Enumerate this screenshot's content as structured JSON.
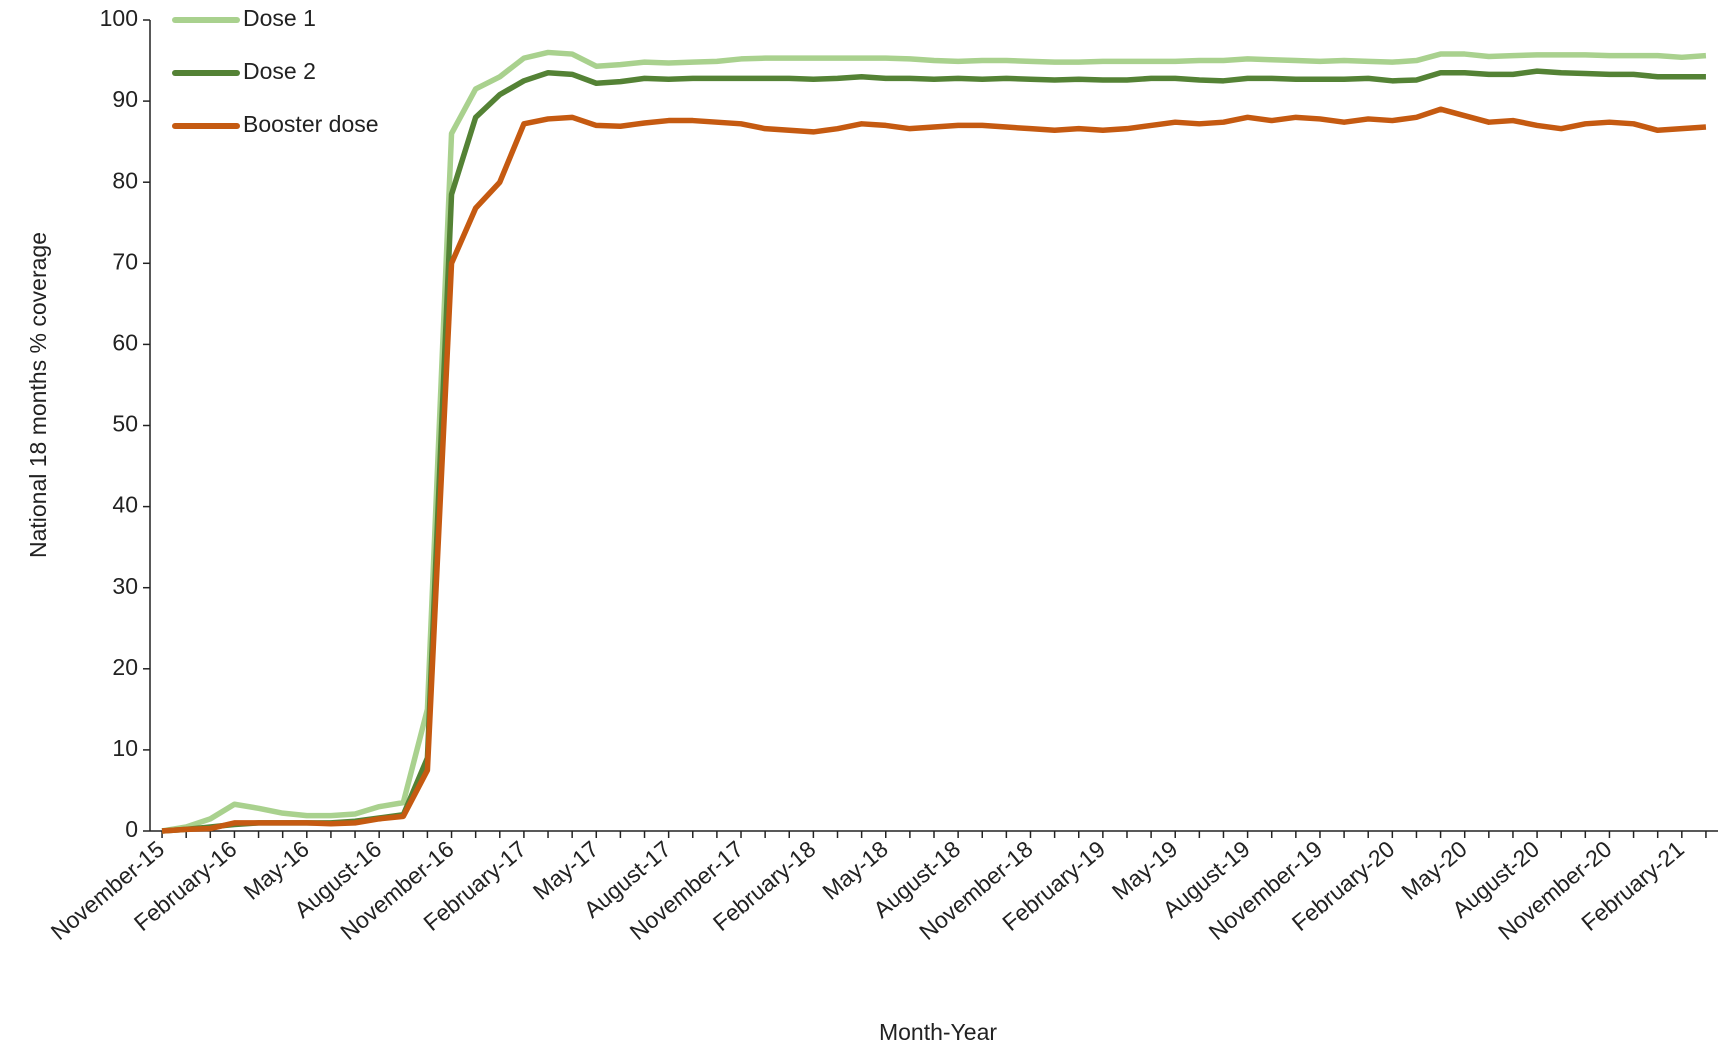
{
  "chart_data": {
    "type": "line",
    "y_label": "National 18 months  % coverage",
    "x_label": "Month-Year",
    "categories": [
      "November-15",
      null,
      null,
      "February-16",
      null,
      null,
      "May-16",
      null,
      null,
      "August-16",
      null,
      null,
      "November-16",
      null,
      null,
      "February-17",
      null,
      null,
      "May-17",
      null,
      null,
      "August-17",
      null,
      null,
      "November-17",
      null,
      null,
      "February-18",
      null,
      null,
      "May-18",
      null,
      null,
      "August-18",
      null,
      null,
      "November-18",
      null,
      null,
      "February-19",
      null,
      null,
      "May-19",
      null,
      null,
      "August-19",
      null,
      null,
      "November-19",
      null,
      null,
      "February-20",
      null,
      null,
      "May-20",
      null,
      null,
      "August-20",
      null,
      null,
      "November-20",
      null,
      null,
      "February-21",
      null
    ],
    "series": [
      {
        "name": "Dose 1",
        "color": "#a9d18e",
        "values": [
          0,
          0.5,
          1.5,
          3.3,
          2.8,
          2.2,
          1.9,
          1.9,
          2.1,
          3,
          3.5,
          15,
          86,
          91.5,
          93,
          95.3,
          96,
          95.8,
          94.3,
          94.5,
          94.8,
          94.7,
          94.8,
          94.9,
          95.2,
          95.3,
          95.3,
          95.3,
          95.3,
          95.3,
          95.3,
          95.2,
          95,
          94.9,
          95,
          95,
          94.9,
          94.8,
          94.8,
          94.9,
          94.9,
          94.9,
          94.9,
          95,
          95,
          95.2,
          95.1,
          95,
          94.9,
          95,
          94.9,
          94.8,
          95,
          95.8,
          95.8,
          95.5,
          95.6,
          95.7,
          95.7,
          95.7,
          95.6,
          95.6,
          95.6,
          95.4,
          95.6
        ]
      },
      {
        "name": "Dose 2",
        "color": "#548235",
        "values": [
          0,
          0.2,
          0.5,
          0.8,
          1,
          1,
          1,
          1,
          1.2,
          1.6,
          2,
          9,
          78.5,
          88,
          90.8,
          92.5,
          93.5,
          93.3,
          92.2,
          92.4,
          92.8,
          92.7,
          92.8,
          92.8,
          92.8,
          92.8,
          92.8,
          92.7,
          92.8,
          93,
          92.8,
          92.8,
          92.7,
          92.8,
          92.7,
          92.8,
          92.7,
          92.6,
          92.7,
          92.6,
          92.6,
          92.8,
          92.8,
          92.6,
          92.5,
          92.8,
          92.8,
          92.7,
          92.7,
          92.7,
          92.8,
          92.5,
          92.6,
          93.5,
          93.5,
          93.3,
          93.3,
          93.7,
          93.5,
          93.4,
          93.3,
          93.3,
          93,
          93,
          93
        ]
      },
      {
        "name": "Booster dose",
        "color": "#c55a11",
        "values": [
          0,
          0.2,
          0.3,
          1,
          1,
          1,
          1,
          0.9,
          1,
          1.5,
          1.8,
          7.5,
          70,
          76.8,
          80,
          87.2,
          87.8,
          88,
          87,
          86.9,
          87.3,
          87.6,
          87.6,
          87.4,
          87.2,
          86.6,
          86.4,
          86.2,
          86.6,
          87.2,
          87,
          86.6,
          86.8,
          87,
          87,
          86.8,
          86.6,
          86.4,
          86.6,
          86.4,
          86.6,
          87,
          87.4,
          87.2,
          87.4,
          88,
          87.6,
          88,
          87.8,
          87.4,
          87.8,
          87.6,
          88,
          89,
          88.2,
          87.4,
          87.6,
          87,
          86.6,
          87.2,
          87.4,
          87.2,
          86.4,
          86.6,
          86.8
        ]
      }
    ],
    "ylim": [
      0,
      100
    ],
    "yticks": [
      0,
      10,
      20,
      30,
      40,
      50,
      60,
      70,
      80,
      90,
      100
    ],
    "grid": false,
    "legend": "top-left"
  }
}
